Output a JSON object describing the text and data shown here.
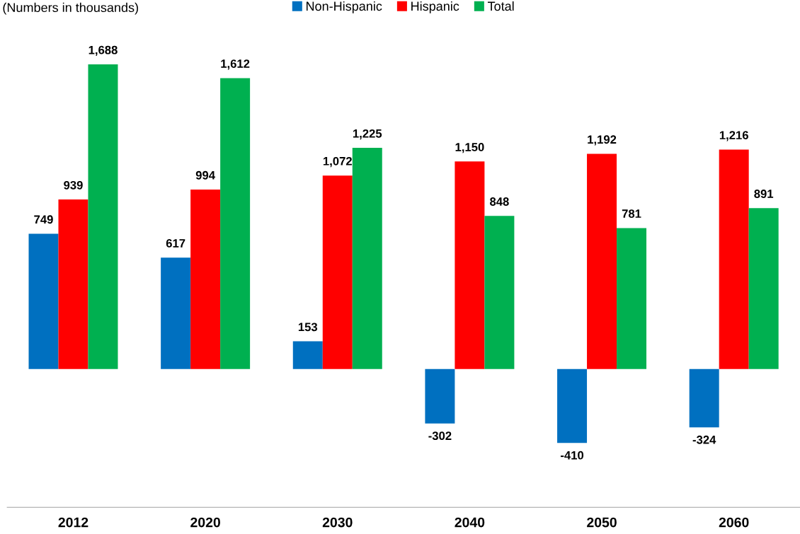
{
  "chart_data": {
    "type": "bar",
    "subtitle": "(Numbers in thousands)",
    "categories": [
      "2012",
      "2020",
      "2030",
      "2040",
      "2050",
      "2060"
    ],
    "series": [
      {
        "name": "Non-Hispanic",
        "color": "#0070c0",
        "values": [
          749,
          617,
          153,
          -302,
          -410,
          -324
        ],
        "value_labels": [
          "749",
          "617",
          "153",
          "-302",
          "-410",
          "-324"
        ]
      },
      {
        "name": "Hispanic",
        "color": "#ff0000",
        "values": [
          939,
          994,
          1072,
          1150,
          1192,
          1216
        ],
        "value_labels": [
          "939",
          "994",
          "1,072",
          "1,150",
          "1,192",
          "1,216"
        ]
      },
      {
        "name": "Total",
        "color": "#00b050",
        "values": [
          1688,
          1612,
          1225,
          848,
          781,
          891
        ],
        "value_labels": [
          "1,688",
          "1,612",
          "1,225",
          "848",
          "781",
          "891"
        ]
      }
    ],
    "legend": "top"
  }
}
